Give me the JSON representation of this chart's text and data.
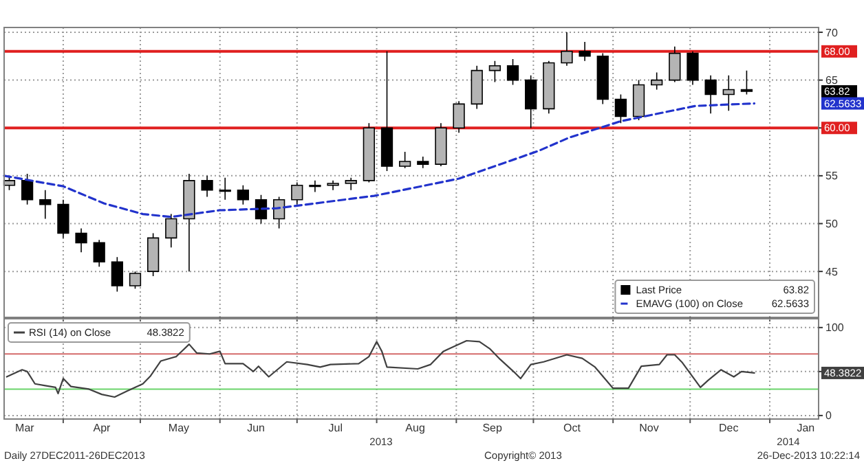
{
  "chart_data": [
    {
      "type": "candlestick",
      "xlim": [
        "2013-03-09",
        "2014-01-20"
      ],
      "ylim": [
        40.2,
        70.5
      ],
      "yticks": [
        45,
        50,
        55,
        {
          "value": 60,
          "label": null
        },
        65,
        70
      ],
      "xticks": [
        {
          "value": "2013-04-01",
          "label": null
        },
        {
          "value": "2013-05-01",
          "label": null
        },
        {
          "value": "2013-06-01",
          "label": null
        },
        {
          "value": "2013-07-01",
          "label": null
        },
        {
          "value": "2013-08-01",
          "label": null
        },
        {
          "value": "2013-09-01",
          "label": null
        },
        {
          "value": "2013-10-01",
          "label": null
        },
        {
          "value": "2013-11-01",
          "label": null
        },
        {
          "value": "2013-12-01",
          "label": null
        },
        {
          "value": "2014-01-01",
          "label": null
        }
      ],
      "tick_labels": "y",
      "grid": true,
      "legend": "bottom right",
      "series": [
        {
          "name": "Last Price",
          "color": "#000000",
          "x": [
            "2013-03-11",
            "2013-03-18",
            "2013-03-25",
            "2013-04-01",
            "2013-04-08",
            "2013-04-15",
            "2013-04-22",
            "2013-04-29",
            "2013-05-06",
            "2013-05-13",
            "2013-05-20",
            "2013-05-27",
            "2013-06-03",
            "2013-06-10",
            "2013-06-17",
            "2013-06-24",
            "2013-07-01",
            "2013-07-08",
            "2013-07-15",
            "2013-07-22",
            "2013-07-29",
            "2013-08-05",
            "2013-08-12",
            "2013-08-19",
            "2013-08-26",
            "2013-09-02",
            "2013-09-09",
            "2013-09-16",
            "2013-09-23",
            "2013-09-30",
            "2013-10-07",
            "2013-10-14",
            "2013-10-21",
            "2013-10-28",
            "2013-11-04",
            "2013-11-11",
            "2013-11-18",
            "2013-11-25",
            "2013-12-02",
            "2013-12-09",
            "2013-12-16",
            "2013-12-23"
          ],
          "ohlc": [
            [
              54,
              55,
              53.5,
              54.5
            ],
            [
              54.5,
              55.2,
              52,
              52.5
            ],
            [
              52.5,
              53.5,
              50.5,
              52
            ],
            [
              52,
              52.5,
              48.5,
              49
            ],
            [
              49,
              49.5,
              47,
              48
            ],
            [
              48,
              48.3,
              45.5,
              46
            ],
            [
              46,
              46.5,
              42.9,
              43.5
            ],
            [
              43.5,
              45,
              43.2,
              44.8
            ],
            [
              45,
              49,
              44.5,
              48.5
            ],
            [
              48.5,
              51,
              47.5,
              50.5
            ],
            [
              50.5,
              55.2,
              45,
              54.5
            ],
            [
              54.5,
              55,
              52.8,
              53.5
            ],
            [
              53.5,
              54.8,
              52.5,
              53.5
            ],
            [
              53.5,
              54,
              52,
              52.5
            ],
            [
              52.5,
              53,
              50,
              50.5
            ],
            [
              50.5,
              52.8,
              49.5,
              52.5
            ],
            [
              52.5,
              54.3,
              52,
              54
            ],
            [
              54,
              54.5,
              53.3,
              54
            ],
            [
              54,
              54.5,
              53.5,
              54.2
            ],
            [
              54.2,
              54.8,
              53.5,
              54.5
            ],
            [
              54.5,
              60.5,
              54.3,
              60
            ],
            [
              60,
              68,
              55.5,
              56
            ],
            [
              56,
              57.5,
              55.8,
              56.5
            ],
            [
              56.5,
              57,
              55.8,
              56.2
            ],
            [
              56.2,
              60.5,
              56,
              60
            ],
            [
              60,
              62.8,
              59.5,
              62.5
            ],
            [
              62.5,
              66.5,
              62,
              66
            ],
            [
              66,
              67,
              64.8,
              66.5
            ],
            [
              66.5,
              67.2,
              64.5,
              65
            ],
            [
              65,
              65.5,
              60,
              62
            ],
            [
              62,
              67,
              61.5,
              66.8
            ],
            [
              66.8,
              70,
              66.5,
              68
            ],
            [
              68,
              69,
              67,
              67.5
            ],
            [
              67.5,
              67.8,
              62.5,
              63
            ],
            [
              63,
              63.5,
              60.5,
              61.2
            ],
            [
              61.2,
              65,
              60.8,
              64.5
            ],
            [
              64.5,
              65.8,
              64,
              65
            ],
            [
              65,
              68.5,
              64.8,
              67.8
            ],
            [
              67.8,
              68,
              64.5,
              65
            ],
            [
              65,
              65.5,
              61.5,
              63.5
            ],
            [
              63.5,
              65.5,
              61.8,
              64
            ],
            [
              64,
              66,
              63.5,
              63.82
            ]
          ]
        },
        {
          "name": "EMAVG (100) on Close",
          "type": "line",
          "color": "#2233cc",
          "line_style": "dashed",
          "x": [
            "2013-03-09",
            "2013-04-01",
            "2013-04-17",
            "2013-05-02",
            "2013-05-13",
            "2013-06-01",
            "2013-06-23",
            "2013-07-31",
            "2013-09-02",
            "2013-10-03",
            "2013-10-15",
            "2013-11-04",
            "2013-12-03",
            "2013-12-26"
          ],
          "values": [
            55,
            53.9,
            52.1,
            51,
            50.7,
            51.4,
            51.6,
            52.9,
            54.7,
            57.6,
            59,
            60.7,
            62.3,
            62.5633
          ]
        }
      ],
      "ref_lines": [
        {
          "axis": "y",
          "value": 68,
          "label": "68.00",
          "color": "#e02020"
        },
        {
          "axis": "y",
          "value": 60,
          "label": "60.00",
          "color": "#e02020"
        }
      ],
      "annotations": [
        "63.82",
        "62.5633"
      ]
    },
    {
      "type": "line",
      "xlim": [
        "2013-03-09",
        "2014-01-20"
      ],
      "ylim": [
        -4,
        110
      ],
      "yticks": [
        0,
        {
          "value": 50,
          "label": null
        },
        100
      ],
      "xticks": [
        {
          "value": "2013-03-17",
          "label": "Mar"
        },
        {
          "value": "2013-04-01",
          "label": null
        },
        {
          "value": "2013-04-16",
          "label": "Apr"
        },
        {
          "value": "2013-05-01",
          "label": null
        },
        {
          "value": "2013-05-16",
          "label": "May"
        },
        {
          "value": "2013-06-01",
          "label": null
        },
        {
          "value": "2013-06-15",
          "label": "Jun"
        },
        {
          "value": "2013-07-01",
          "label": null
        },
        {
          "value": "2013-07-16",
          "label": "Jul"
        },
        {
          "value": "2013-08-01",
          "label": null
        },
        {
          "value": "2013-08-16",
          "label": "Aug"
        },
        {
          "value": "2013-09-01",
          "label": null
        },
        {
          "value": "2013-09-15",
          "label": "Sep"
        },
        {
          "value": "2013-10-01",
          "label": null
        },
        {
          "value": "2013-10-16",
          "label": "Oct"
        },
        {
          "value": "2013-11-01",
          "label": null
        },
        {
          "value": "2013-11-15",
          "label": "Nov"
        },
        {
          "value": "2013-12-01",
          "label": null
        },
        {
          "value": "2013-12-16",
          "label": "Dec"
        },
        {
          "value": "2014-01-01",
          "label": null
        },
        {
          "value": "2014-01-15",
          "label": "Jan"
        }
      ],
      "grid": true,
      "legend": "top left",
      "series": [
        {
          "name": "RSI (14) on Close",
          "color": "#404040",
          "x": [
            "2013-03-10",
            "2013-03-16",
            "2013-03-18",
            "2013-03-21",
            "2013-03-25",
            "2013-03-29",
            "2013-03-30",
            "2013-04-01",
            "2013-04-04",
            "2013-04-11",
            "2013-04-16",
            "2013-04-21",
            "2013-04-26",
            "2013-05-02",
            "2013-05-05",
            "2013-05-09",
            "2013-05-15",
            "2013-05-20",
            "2013-05-23",
            "2013-05-28",
            "2013-06-01",
            "2013-06-03",
            "2013-06-10",
            "2013-06-14",
            "2013-06-16",
            "2013-06-20",
            "2013-06-27",
            "2013-07-05",
            "2013-07-10",
            "2013-07-14",
            "2013-07-25",
            "2013-07-29",
            "2013-08-01",
            "2013-08-03",
            "2013-08-05",
            "2013-08-17",
            "2013-08-22",
            "2013-08-27",
            "2013-09-05",
            "2013-09-10",
            "2013-09-14",
            "2013-09-18",
            "2013-09-24",
            "2013-09-26",
            "2013-09-30",
            "2013-10-05",
            "2013-10-14",
            "2013-10-20",
            "2013-10-25",
            "2013-11-01",
            "2013-11-07",
            "2013-11-12",
            "2013-11-19",
            "2013-11-22",
            "2013-11-25",
            "2013-11-28",
            "2013-12-05",
            "2013-12-08",
            "2013-12-13",
            "2013-12-18",
            "2013-12-21",
            "2013-12-26"
          ],
          "values": [
            44,
            52,
            50,
            36,
            34,
            32,
            25,
            42,
            33,
            30,
            24,
            21,
            28,
            36,
            45,
            62,
            67,
            81,
            71,
            70,
            73,
            59,
            59,
            50,
            56,
            44,
            61,
            58,
            55,
            58,
            59,
            67,
            84,
            73,
            55,
            53,
            58,
            73,
            85,
            84,
            76,
            64,
            48,
            42,
            58,
            61,
            69,
            65,
            55,
            31,
            31,
            56,
            58,
            69,
            69,
            60,
            32,
            40,
            52,
            44,
            50,
            48.3822
          ]
        }
      ],
      "ref_lines": [
        {
          "axis": "y",
          "value": 70,
          "color": "#d46a6a"
        },
        {
          "axis": "y",
          "value": 30,
          "color": "#6ad46a"
        }
      ],
      "annotations": [
        "48.3822",
        "2013",
        "2014",
        "Daily 27DEC2011-26DEC2013",
        "Copyright© 2013",
        "26-Dec-2013 10:22:14"
      ]
    }
  ]
}
